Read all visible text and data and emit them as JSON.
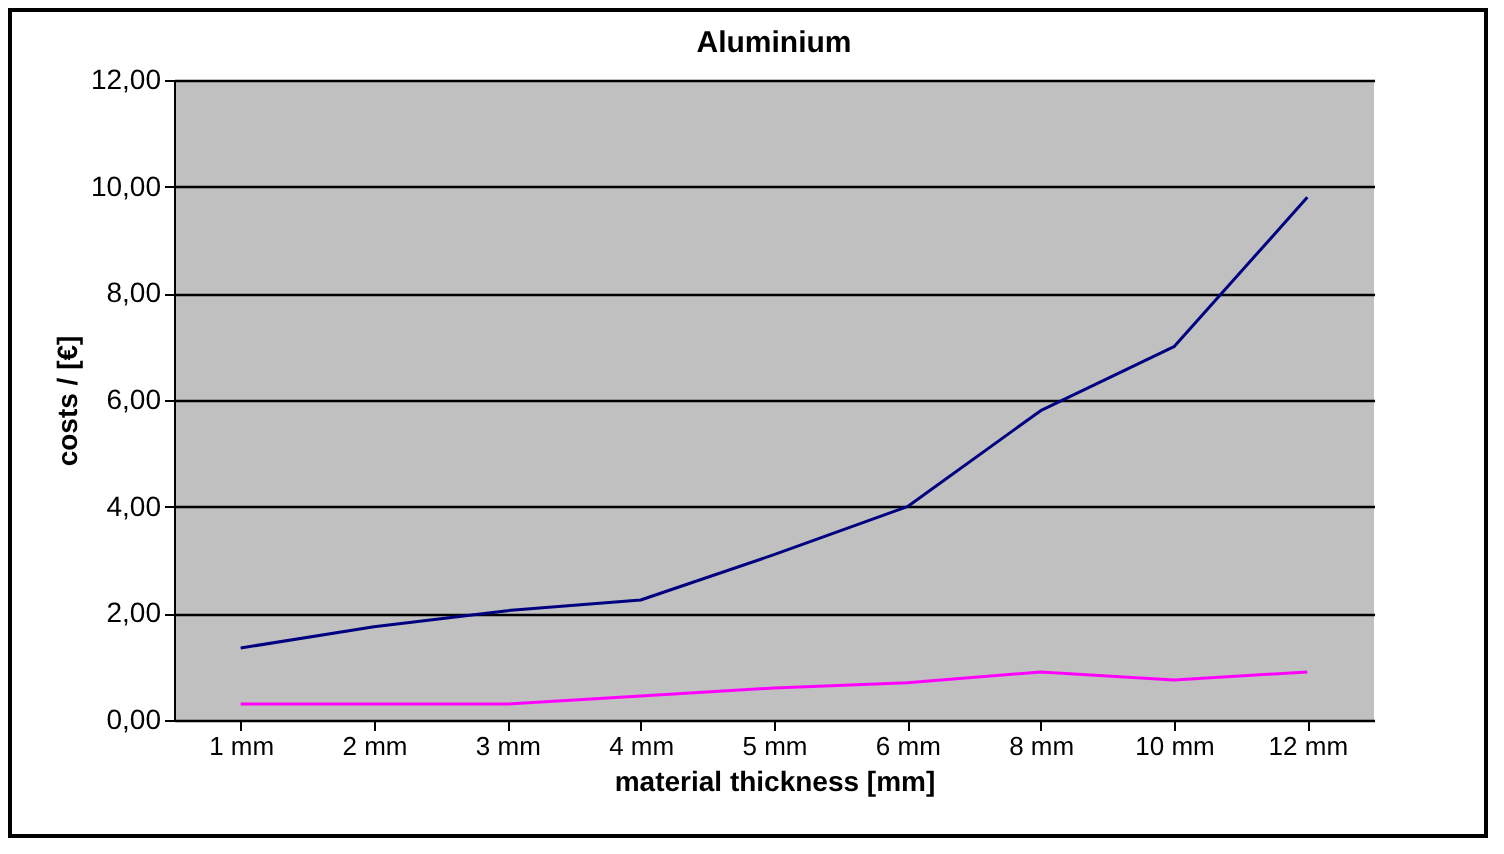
{
  "chart_data": {
    "type": "line",
    "title": "Aluminium",
    "xlabel": "material thickness [mm]",
    "ylabel": "costs / [€]",
    "categories": [
      "1 mm",
      "2 mm",
      "3 mm",
      "4 mm",
      "5 mm",
      "6 mm",
      "8 mm",
      "10 mm",
      "12 mm"
    ],
    "series": [
      {
        "color": "#000080",
        "values": [
          1.35,
          1.75,
          2.05,
          2.25,
          3.1,
          4.0,
          5.8,
          7.0,
          9.8
        ]
      },
      {
        "color": "#ff00ff",
        "values": [
          0.3,
          0.3,
          0.3,
          0.45,
          0.6,
          0.7,
          0.9,
          0.75,
          0.9
        ]
      }
    ],
    "ylim": [
      0,
      12
    ],
    "yticks": [
      {
        "value": 0,
        "label": "0,00"
      },
      {
        "value": 2,
        "label": "2,00"
      },
      {
        "value": 4,
        "label": "4,00"
      },
      {
        "value": 6,
        "label": "6,00"
      },
      {
        "value": 8,
        "label": "8,00"
      },
      {
        "value": 10,
        "label": "10,00"
      },
      {
        "value": 12,
        "label": "12,00"
      }
    ],
    "grid": "y",
    "legend": false,
    "marker": "none",
    "line_style": "solid"
  }
}
